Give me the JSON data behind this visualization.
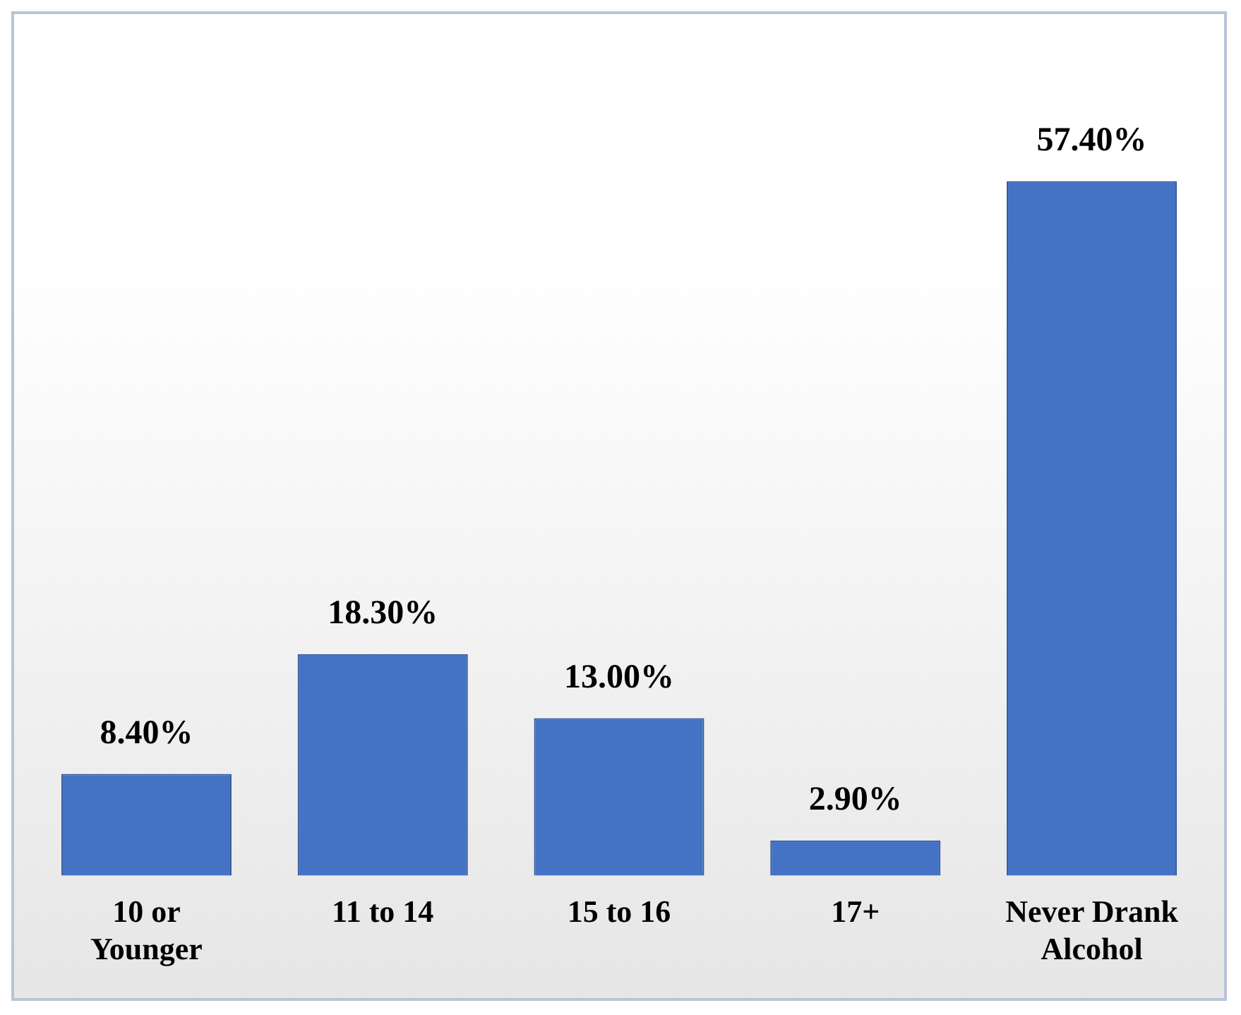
{
  "chart_data": {
    "type": "bar",
    "categories": [
      "10 or Younger",
      "11 to 14",
      "15 to 16",
      "17+",
      "Never Drank Alcohol"
    ],
    "values": [
      8.4,
      18.3,
      13.0,
      2.9,
      57.4
    ],
    "value_labels": [
      "8.40%",
      "18.30%",
      "13.00%",
      "2.90%",
      "57.40%"
    ],
    "color": "#4472c4",
    "grid": false,
    "legend": false
  }
}
